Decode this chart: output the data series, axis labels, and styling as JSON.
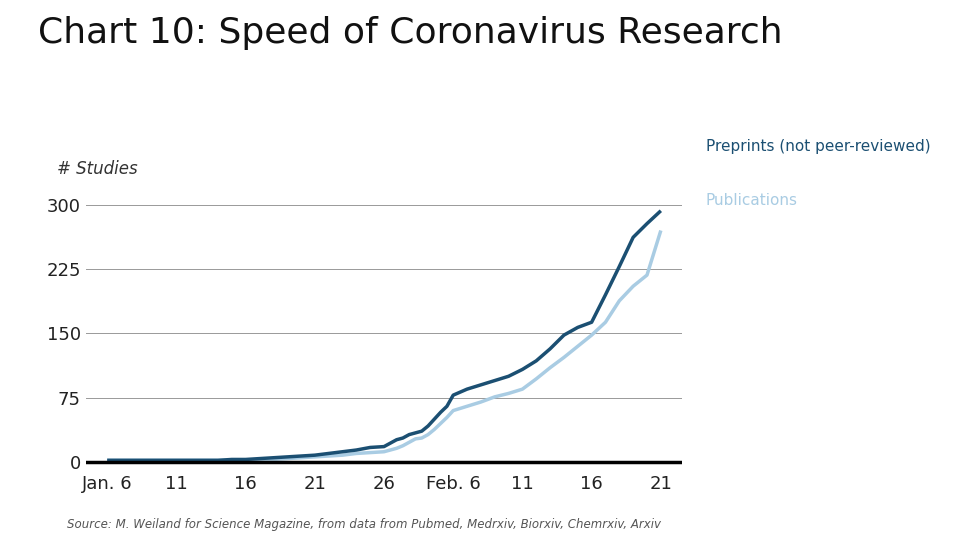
{
  "title": "Chart 10: Speed of Coronavirus Research",
  "ylabel": "# Studies",
  "source": "Source: M. Weiland for Science Magazine, from data from Pubmed, Medrxiv, Biorxiv, Chemrxiv, Arxiv",
  "legend_preprints": "Preprints (not peer-reviewed)",
  "legend_publications": "Publications",
  "xtick_labels": [
    "Jan. 6",
    "11",
    "16",
    "21",
    "26",
    "Feb. 6",
    "11",
    "16",
    "21"
  ],
  "ytick_values": [
    0,
    75,
    150,
    225,
    300
  ],
  "ylim": [
    -5,
    320
  ],
  "preprints_color": "#1b4f72",
  "publications_color": "#a9cce3",
  "background_color": "#ffffff",
  "title_fontsize": 26,
  "axis_label_fontsize": 12,
  "tick_fontsize": 13,
  "source_fontsize": 8.5,
  "legend_fontsize": 11,
  "preprints_x": [
    0,
    1,
    2,
    3,
    4,
    5,
    6,
    7,
    8,
    9,
    10,
    11,
    12,
    13,
    14,
    15,
    16,
    17,
    18,
    19,
    20,
    21,
    22,
    23,
    24,
    25,
    26,
    27,
    28,
    29,
    30,
    31,
    32,
    33,
    34,
    35,
    36,
    37,
    38,
    39,
    40,
    41,
    42,
    43,
    44,
    45,
    46,
    47,
    48
  ],
  "preprints_y": [
    2,
    2,
    2,
    2,
    2,
    2,
    2,
    2,
    2,
    3,
    3,
    4,
    5,
    6,
    7,
    8,
    10,
    12,
    14,
    17,
    18,
    22,
    26,
    28,
    32,
    34,
    36,
    42,
    50,
    58,
    65,
    78,
    85,
    90,
    95,
    100,
    108,
    118,
    132,
    148,
    157,
    163,
    195,
    228,
    262,
    278,
    293,
    293,
    293
  ],
  "publications_x": [
    0,
    1,
    2,
    3,
    4,
    5,
    6,
    7,
    8,
    9,
    10,
    11,
    12,
    13,
    14,
    15,
    16,
    17,
    18,
    19,
    20,
    21,
    22,
    23,
    24,
    25,
    26,
    27,
    28,
    29,
    30,
    31,
    32,
    33,
    34,
    35,
    36,
    37,
    38,
    39,
    40,
    41,
    42,
    43,
    44,
    45,
    46,
    47,
    48
  ],
  "publications_y": [
    2,
    2,
    2,
    2,
    2,
    2,
    2,
    2,
    2,
    2,
    2,
    2,
    3,
    4,
    5,
    6,
    7,
    8,
    10,
    11,
    12,
    14,
    16,
    19,
    23,
    27,
    28,
    32,
    38,
    45,
    52,
    60,
    65,
    70,
    76,
    80,
    85,
    97,
    110,
    122,
    135,
    148,
    163,
    188,
    205,
    218,
    270,
    270,
    270
  ]
}
